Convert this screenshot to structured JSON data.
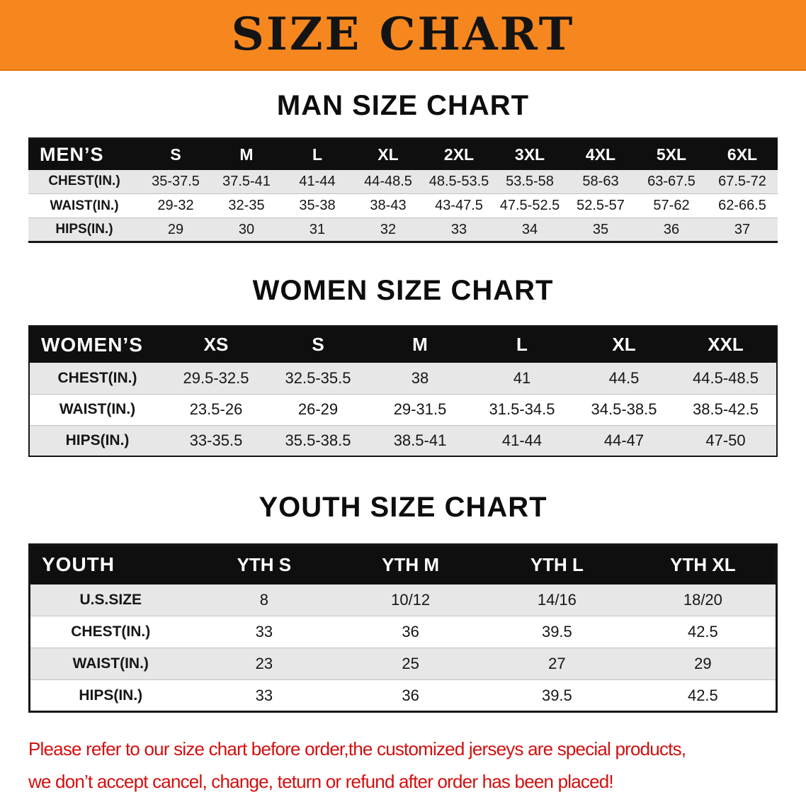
{
  "banner": {
    "title": "SIZE CHART",
    "bg_color": "#f6871f"
  },
  "sections": [
    {
      "id": "men",
      "heading": "MAN SIZE CHART",
      "table": {
        "header": [
          "MEN’S",
          "S",
          "M",
          "L",
          "XL",
          "2XL",
          "3XL",
          "4XL",
          "5XL",
          "6XL"
        ],
        "rows": [
          [
            "CHEST(IN.)",
            "35-37.5",
            "37.5-41",
            "41-44",
            "44-48.5",
            "48.5-53.5",
            "53.5-58",
            "58-63",
            "63-67.5",
            "67.5-72"
          ],
          [
            "WAIST(IN.)",
            "29-32",
            "32-35",
            "35-38",
            "38-43",
            "43-47.5",
            "47.5-52.5",
            "52.5-57",
            "57-62",
            "62-66.5"
          ],
          [
            "HIPS(IN.)",
            "29",
            "30",
            "31",
            "32",
            "33",
            "34",
            "35",
            "36",
            "37"
          ]
        ]
      }
    },
    {
      "id": "women",
      "heading": "WOMEN SIZE CHART",
      "table": {
        "header": [
          "WOMEN’S",
          "XS",
          "S",
          "M",
          "L",
          "XL",
          "XXL"
        ],
        "rows": [
          [
            "CHEST(IN.)",
            "29.5-32.5",
            "32.5-35.5",
            "38",
            "41",
            "44.5",
            "44.5-48.5"
          ],
          [
            "WAIST(IN.)",
            "23.5-26",
            "26-29",
            "29-31.5",
            "31.5-34.5",
            "34.5-38.5",
            "38.5-42.5"
          ],
          [
            "HIPS(IN.)",
            "33-35.5",
            "35.5-38.5",
            "38.5-41",
            "41-44",
            "44-47",
            "47-50"
          ]
        ]
      }
    },
    {
      "id": "youth",
      "heading": "YOUTH SIZE CHART",
      "table": {
        "header": [
          "YOUTH",
          "YTH S",
          "YTH M",
          "YTH L",
          "YTH XL"
        ],
        "rows": [
          [
            "U.S.SIZE",
            "8",
            "10/12",
            "14/16",
            "18/20"
          ],
          [
            "CHEST(IN.)",
            "33",
            "36",
            "39.5",
            "42.5"
          ],
          [
            "WAIST(IN.)",
            "23",
            "25",
            "27",
            "29"
          ],
          [
            "HIPS(IN.)",
            "33",
            "36",
            "39.5",
            "42.5"
          ]
        ]
      }
    }
  ],
  "footnote": {
    "color": "#d21010",
    "lines": [
      "Please refer to our size chart before order,the customized jerseys are special products,",
      "we don’t accept cancel, change, teturn or refund after order has been placed!"
    ]
  }
}
